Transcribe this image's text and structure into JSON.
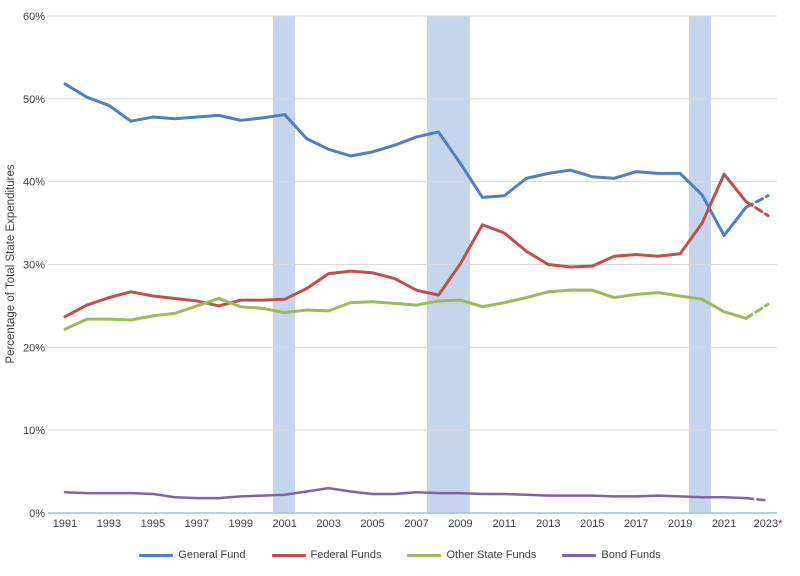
{
  "figure": {
    "y_axis_title": "Percentage of Total State Expenditures"
  },
  "chart_data": {
    "type": "line",
    "title": "",
    "xlabel": "",
    "ylabel": "Percentage of Total State Expenditures",
    "ylim": [
      0,
      60
    ],
    "grid": true,
    "legend_position": "bottom",
    "y_ticks": [
      0,
      10,
      20,
      30,
      40,
      50,
      60
    ],
    "y_tick_labels": [
      "0%",
      "10%",
      "20%",
      "30%",
      "40%",
      "50%",
      "60%"
    ],
    "x": [
      1991,
      1992,
      1993,
      1994,
      1995,
      1996,
      1997,
      1998,
      1999,
      2000,
      2001,
      2002,
      2003,
      2004,
      2005,
      2006,
      2007,
      2008,
      2009,
      2010,
      2011,
      2012,
      2013,
      2014,
      2015,
      2016,
      2017,
      2018,
      2019,
      2020,
      2021,
      2022,
      2023
    ],
    "x_tick_labels": [
      "1991",
      "1993",
      "1995",
      "1997",
      "1999",
      "2001",
      "2003",
      "2005",
      "2007",
      "2009",
      "2011",
      "2013",
      "2015",
      "2017",
      "2019",
      "2021",
      "2023*"
    ],
    "last_segment_dashed": true,
    "recession_bands": [
      {
        "start": 2000.47,
        "end": 2001.47
      },
      {
        "start": 2007.48,
        "end": 2009.43
      },
      {
        "start": 2019.4,
        "end": 2020.4
      }
    ],
    "series": [
      {
        "name": "General Fund",
        "color": "#4F81BD",
        "values": [
          51.8,
          50.2,
          49.2,
          47.3,
          47.8,
          47.6,
          47.8,
          48.0,
          47.4,
          47.7,
          48.1,
          45.2,
          43.9,
          43.1,
          43.6,
          44.4,
          45.4,
          46.0,
          42.2,
          38.1,
          38.3,
          40.4,
          41.0,
          41.4,
          40.6,
          40.4,
          41.2,
          41.0,
          41.0,
          38.4,
          33.5,
          36.9,
          38.3
        ]
      },
      {
        "name": "Federal Funds",
        "color": "#C0504D",
        "values": [
          23.7,
          25.1,
          26.0,
          26.7,
          26.2,
          25.9,
          25.6,
          25.0,
          25.7,
          25.7,
          25.8,
          27.1,
          28.9,
          29.2,
          29.0,
          28.3,
          26.9,
          26.3,
          30.1,
          34.8,
          33.8,
          31.6,
          30.0,
          29.7,
          29.8,
          31.0,
          31.2,
          31.0,
          31.3,
          35.0,
          40.9,
          37.6,
          35.9
        ]
      },
      {
        "name": "Other State Funds",
        "color": "#9BBB59",
        "values": [
          22.2,
          23.4,
          23.4,
          23.3,
          23.8,
          24.1,
          25.0,
          25.9,
          24.9,
          24.7,
          24.2,
          24.5,
          24.4,
          25.4,
          25.5,
          25.3,
          25.1,
          25.6,
          25.7,
          24.9,
          25.4,
          26.0,
          26.7,
          26.9,
          26.9,
          26.0,
          26.4,
          26.6,
          26.2,
          25.8,
          24.3,
          23.5,
          25.2
        ]
      },
      {
        "name": "Bond Funds",
        "color": "#8064A2",
        "values": [
          2.5,
          2.4,
          2.4,
          2.4,
          2.3,
          1.9,
          1.8,
          1.8,
          2.0,
          2.1,
          2.2,
          2.6,
          3.0,
          2.6,
          2.3,
          2.3,
          2.5,
          2.4,
          2.4,
          2.3,
          2.3,
          2.2,
          2.1,
          2.1,
          2.1,
          2.0,
          2.0,
          2.1,
          2.0,
          1.9,
          1.9,
          1.8,
          1.5
        ]
      }
    ]
  },
  "colors": {
    "gridline": "#D9D9D9",
    "axis_line": "#9FC1E0",
    "recession_band": "#C5D5EB",
    "text": "#3F3F3F"
  }
}
